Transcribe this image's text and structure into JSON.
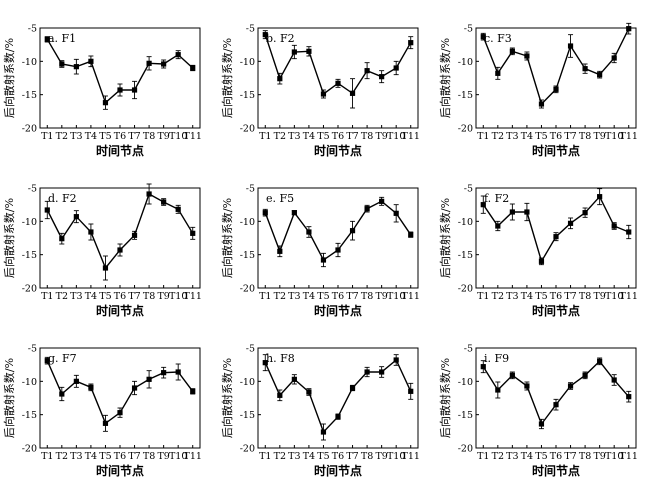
{
  "chart_data": [
    {
      "type": "line",
      "title": "a. F1",
      "xlabel": "时间节点",
      "ylabel": "后向散射系数/%",
      "categories": [
        "T1",
        "T2",
        "T3",
        "T4",
        "T5",
        "T6",
        "T7",
        "T8",
        "T9",
        "T10",
        "T11"
      ],
      "ylim": [
        -20,
        -5
      ],
      "yticks": [
        -5,
        -10,
        -15,
        -20
      ],
      "values": [
        -6.7,
        -10.4,
        -10.8,
        -10.0,
        -16.2,
        -14.3,
        -14.3,
        -10.3,
        -10.4,
        -9.0,
        -11.0
      ],
      "errors": [
        0.4,
        0.5,
        1.1,
        0.8,
        1.0,
        0.9,
        1.3,
        1.0,
        0.6,
        0.6,
        0.4
      ],
      "grid": false
    },
    {
      "type": "line",
      "title": "b. F2",
      "xlabel": "时间节点",
      "ylabel": "后向散射系数/%",
      "categories": [
        "T1",
        "T2",
        "T3",
        "T4",
        "T5",
        "T6",
        "T7",
        "T8",
        "T9",
        "T10",
        "T11"
      ],
      "ylim": [
        -20,
        -5
      ],
      "yticks": [
        -5,
        -10,
        -15,
        -20
      ],
      "values": [
        -6.0,
        -12.6,
        -8.6,
        -8.5,
        -14.9,
        -13.3,
        -14.8,
        -11.4,
        -12.3,
        -11.0,
        -7.2
      ],
      "errors": [
        0.6,
        0.8,
        1.0,
        0.7,
        0.6,
        0.6,
        2.2,
        1.2,
        0.9,
        1.0,
        0.9
      ],
      "grid": false
    },
    {
      "type": "line",
      "title": "c. F3",
      "xlabel": "时间节点",
      "ylabel": "后向散射系数/%",
      "categories": [
        "T1",
        "T2",
        "T3",
        "T4",
        "T5",
        "T6",
        "T7",
        "T8",
        "T9",
        "T10",
        "T11"
      ],
      "ylim": [
        -20,
        -5
      ],
      "yticks": [
        -5,
        -10,
        -15,
        -20
      ],
      "values": [
        -6.3,
        -11.8,
        -8.5,
        -9.2,
        -16.4,
        -14.2,
        -7.7,
        -11.1,
        -12.0,
        -9.5,
        -5.1
      ],
      "errors": [
        0.5,
        0.9,
        0.5,
        0.6,
        0.6,
        0.5,
        1.7,
        0.7,
        0.5,
        0.7,
        0.8
      ],
      "grid": false
    },
    {
      "type": "line",
      "title": "d. F2",
      "xlabel": "时间节点",
      "ylabel": "后向散射系数/%",
      "categories": [
        "T1",
        "T2",
        "T3",
        "T4",
        "T5",
        "T6",
        "T7",
        "T8",
        "T9",
        "T10",
        "T11"
      ],
      "ylim": [
        -20,
        -5
      ],
      "yticks": [
        -5,
        -10,
        -15,
        -20
      ],
      "values": [
        -8.3,
        -12.6,
        -9.3,
        -11.6,
        -17.0,
        -14.3,
        -12.1,
        -5.9,
        -7.1,
        -8.2,
        -11.8
      ],
      "errors": [
        1.3,
        0.8,
        0.9,
        1.2,
        1.8,
        0.9,
        0.6,
        1.5,
        0.5,
        0.6,
        0.9
      ],
      "grid": false
    },
    {
      "type": "line",
      "title": "e. F5",
      "xlabel": "时间节点",
      "ylabel": "后向散射系数/%",
      "categories": [
        "T1",
        "T2",
        "T3",
        "T4",
        "T5",
        "T6",
        "T7",
        "T8",
        "T9",
        "T10",
        "T11"
      ],
      "ylim": [
        -20,
        -5
      ],
      "yticks": [
        -5,
        -10,
        -15,
        -20
      ],
      "values": [
        -8.7,
        -14.5,
        -8.7,
        -11.6,
        -15.8,
        -14.3,
        -11.4,
        -8.1,
        -7.0,
        -8.8,
        -12.0
      ],
      "errors": [
        0.5,
        0.8,
        0.3,
        0.8,
        1.0,
        1.0,
        1.4,
        0.5,
        0.6,
        1.3,
        0.4
      ],
      "grid": false
    },
    {
      "type": "line",
      "title": "f. F2",
      "xlabel": "时间节点",
      "ylabel": "后向散射系数/%",
      "categories": [
        "T1",
        "T2",
        "T3",
        "T4",
        "T5",
        "T6",
        "T7",
        "T8",
        "T9",
        "T10",
        "T11"
      ],
      "ylim": [
        -20,
        -5
      ],
      "yticks": [
        -5,
        -10,
        -15,
        -20
      ],
      "values": [
        -7.5,
        -10.7,
        -8.6,
        -8.6,
        -16.0,
        -12.3,
        -10.3,
        -8.7,
        -6.3,
        -10.7,
        -11.6
      ],
      "errors": [
        1.3,
        0.7,
        1.2,
        1.3,
        0.5,
        0.6,
        0.8,
        0.7,
        1.2,
        0.5,
        1.0
      ],
      "grid": false
    },
    {
      "type": "line",
      "title": "g. F7",
      "xlabel": "时间节点",
      "ylabel": "后向散射系数/%",
      "categories": [
        "T1",
        "T2",
        "T3",
        "T4",
        "T5",
        "T6",
        "T7",
        "T8",
        "T9",
        "T10",
        "T11"
      ],
      "ylim": [
        -20,
        -5
      ],
      "yticks": [
        -5,
        -10,
        -15,
        -20
      ],
      "values": [
        -6.9,
        -11.9,
        -10.0,
        -10.9,
        -16.3,
        -14.7,
        -11.0,
        -9.7,
        -8.7,
        -8.6,
        -11.5
      ],
      "errors": [
        0.5,
        1.0,
        0.9,
        0.5,
        1.2,
        0.7,
        1.0,
        1.3,
        0.8,
        1.2,
        0.4
      ],
      "grid": false
    },
    {
      "type": "line",
      "title": "h. F8",
      "xlabel": "时间节点",
      "ylabel": "后向散射系数/%",
      "categories": [
        "T1",
        "T2",
        "T3",
        "T4",
        "T5",
        "T6",
        "T7",
        "T8",
        "T9",
        "T10",
        "T11"
      ],
      "ylim": [
        -20,
        -5
      ],
      "yticks": [
        -5,
        -10,
        -15,
        -20
      ],
      "values": [
        -7.2,
        -12.1,
        -9.7,
        -11.6,
        -17.6,
        -15.3,
        -11.0,
        -8.6,
        -8.6,
        -6.8,
        -11.5
      ],
      "errors": [
        1.2,
        0.8,
        0.7,
        0.5,
        1.2,
        0.4,
        0.4,
        0.7,
        0.8,
        0.8,
        1.2
      ],
      "grid": false
    },
    {
      "type": "line",
      "title": "i. F9",
      "xlabel": "时间节点",
      "ylabel": "后向散射系数/%",
      "categories": [
        "T1",
        "T2",
        "T3",
        "T4",
        "T5",
        "T6",
        "T7",
        "T8",
        "T9",
        "T10",
        "T11"
      ],
      "ylim": [
        -20,
        -5
      ],
      "yticks": [
        -5,
        -10,
        -15,
        -20
      ],
      "values": [
        -7.8,
        -11.3,
        -9.1,
        -10.7,
        -16.4,
        -13.5,
        -10.7,
        -9.1,
        -7.0,
        -9.8,
        -12.3
      ],
      "errors": [
        0.9,
        1.2,
        0.5,
        0.6,
        0.7,
        0.8,
        0.5,
        0.5,
        0.5,
        0.8,
        0.8
      ],
      "grid": false
    }
  ]
}
